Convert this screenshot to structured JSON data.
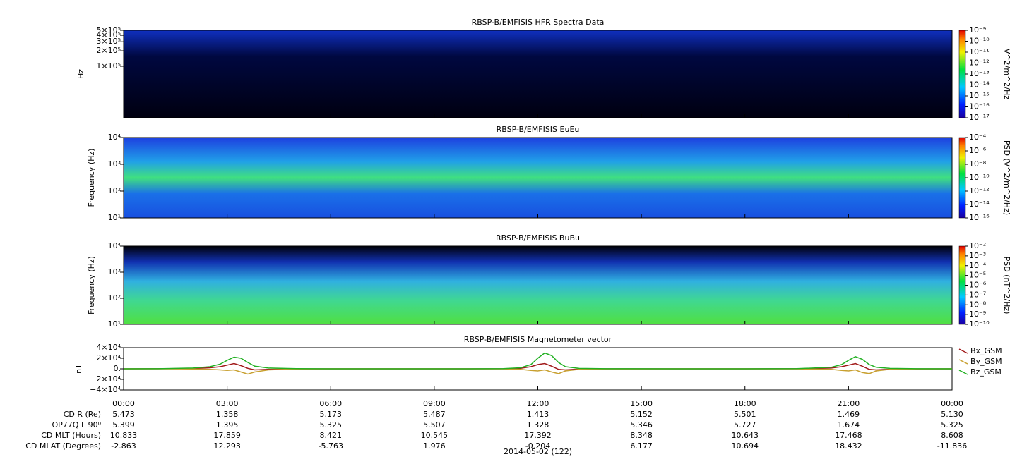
{
  "chart_data": [
    {
      "type": "spectrogram",
      "title": "RBSP-B/EMFISIS  HFR Spectra Data",
      "ylabel": "Hz",
      "log_y": true,
      "ylim": [
        10000,
        500000
      ],
      "yticks": [
        {
          "value": 100000,
          "label": "1×10⁵"
        },
        {
          "value": 200000,
          "label": "2×10⁵"
        },
        {
          "value": 300000,
          "label": "3×10⁵"
        },
        {
          "value": 400000,
          "label": "4×10⁵"
        },
        {
          "value": 500000,
          "label": "5×10⁵"
        }
      ],
      "colorbar": {
        "label": "V^2/m^2/Hz",
        "log": true,
        "zlim": [
          1e-17,
          1e-09
        ],
        "zticks": [
          {
            "value": 1e-17,
            "label": "10⁻¹⁷"
          },
          {
            "value": 1e-16,
            "label": "10⁻¹⁶"
          },
          {
            "value": 1e-15,
            "label": "10⁻¹⁵"
          },
          {
            "value": 1e-14,
            "label": "10⁻¹⁴"
          },
          {
            "value": 1e-13,
            "label": "10⁻¹³"
          },
          {
            "value": 1e-12,
            "label": "10⁻¹²"
          },
          {
            "value": 1e-11,
            "label": "10⁻¹¹"
          },
          {
            "value": 1e-10,
            "label": "10⁻¹⁰"
          },
          {
            "value": 1e-09,
            "label": "10⁻⁹"
          }
        ]
      }
    },
    {
      "type": "spectrogram",
      "title": "RBSP-B/EMFISIS  EuEu",
      "ylabel": "Frequency (Hz)",
      "log_y": true,
      "ylim": [
        10,
        10000
      ],
      "yticks": [
        {
          "value": 10,
          "label": "10¹"
        },
        {
          "value": 100,
          "label": "10²"
        },
        {
          "value": 1000,
          "label": "10³"
        },
        {
          "value": 10000,
          "label": "10⁴"
        }
      ],
      "colorbar": {
        "label": "PSD (V^2/m^2/Hz)",
        "log": true,
        "zlim": [
          1e-16,
          0.0001
        ],
        "zticks": [
          {
            "value": 1e-16,
            "label": "10⁻¹⁶"
          },
          {
            "value": 1e-14,
            "label": "10⁻¹⁴"
          },
          {
            "value": 1e-12,
            "label": "10⁻¹²"
          },
          {
            "value": 1e-10,
            "label": "10⁻¹⁰"
          },
          {
            "value": 1e-08,
            "label": "10⁻⁸"
          },
          {
            "value": 1e-06,
            "label": "10⁻⁶"
          },
          {
            "value": 0.0001,
            "label": "10⁻⁴"
          }
        ]
      }
    },
    {
      "type": "spectrogram",
      "title": "RBSP-B/EMFISIS  BuBu",
      "ylabel": "Frequency (Hz)",
      "log_y": true,
      "ylim": [
        10,
        10000
      ],
      "yticks": [
        {
          "value": 10,
          "label": "10¹"
        },
        {
          "value": 100,
          "label": "10²"
        },
        {
          "value": 1000,
          "label": "10³"
        },
        {
          "value": 10000,
          "label": "10⁴"
        }
      ],
      "colorbar": {
        "label": "PSD (nT^2/Hz)",
        "log": true,
        "zlim": [
          1e-10,
          0.01
        ],
        "zticks": [
          {
            "value": 1e-10,
            "label": "10⁻¹⁰"
          },
          {
            "value": 1e-09,
            "label": "10⁻⁹"
          },
          {
            "value": 1e-08,
            "label": "10⁻⁸"
          },
          {
            "value": 1e-07,
            "label": "10⁻⁷"
          },
          {
            "value": 1e-06,
            "label": "10⁻⁶"
          },
          {
            "value": 1e-05,
            "label": "10⁻⁵"
          },
          {
            "value": 0.0001,
            "label": "10⁻⁴"
          },
          {
            "value": 0.001,
            "label": "10⁻³"
          },
          {
            "value": 0.01,
            "label": "10⁻²"
          }
        ]
      }
    },
    {
      "type": "line",
      "title": "RBSP-B/EMFISIS  Magnetometer vector",
      "ylabel": "nT",
      "legend": "right",
      "ylim": [
        -40000,
        40000
      ],
      "yticks": [
        {
          "value": -40000,
          "label": "−4×10⁴"
        },
        {
          "value": -20000,
          "label": "−2×10⁴"
        },
        {
          "value": 0,
          "label": "0."
        },
        {
          "value": 20000,
          "label": "2×10⁴"
        },
        {
          "value": 40000,
          "label": "4×10⁴"
        }
      ],
      "xlim": [
        0,
        24
      ],
      "xticks": [
        {
          "value": 0,
          "label": "00:00"
        },
        {
          "value": 3,
          "label": "03:00"
        },
        {
          "value": 6,
          "label": "06:00"
        },
        {
          "value": 9,
          "label": "09:00"
        },
        {
          "value": 12,
          "label": "12:00"
        },
        {
          "value": 15,
          "label": "15:00"
        },
        {
          "value": 18,
          "label": "18:00"
        },
        {
          "value": 21,
          "label": "21:00"
        },
        {
          "value": 24,
          "label": "00:00"
        }
      ],
      "x": [
        0,
        1,
        2,
        2.5,
        2.8,
        3.0,
        3.2,
        3.4,
        3.6,
        3.8,
        4.2,
        5,
        6,
        8,
        10,
        11,
        11.5,
        11.8,
        12.0,
        12.2,
        12.4,
        12.6,
        12.8,
        13.2,
        14,
        16,
        18,
        19.5,
        20.5,
        20.8,
        21.0,
        21.2,
        21.4,
        21.6,
        21.8,
        22.2,
        23,
        24
      ],
      "series": [
        {
          "name": "Bx_GSM",
          "color": "#a01818",
          "values": [
            0,
            100,
            700,
            2000,
            4000,
            7000,
            10000,
            6000,
            1000,
            -2000,
            -1000,
            -200,
            0,
            0,
            0,
            200,
            1000,
            4000,
            8000,
            10000,
            5000,
            -1000,
            -2000,
            -500,
            0,
            0,
            0,
            200,
            1500,
            4000,
            7000,
            10000,
            5000,
            -1000,
            -2000,
            -800,
            -100,
            0
          ]
        },
        {
          "name": "By_GSM",
          "color": "#c8a030",
          "values": [
            0,
            0,
            -300,
            -1000,
            -2000,
            -3000,
            -2000,
            -6000,
            -10000,
            -6000,
            -2000,
            -300,
            0,
            0,
            0,
            -200,
            -1000,
            -3000,
            -4000,
            -2000,
            -6000,
            -9000,
            -4000,
            -1000,
            -100,
            0,
            0,
            -200,
            -1000,
            -3000,
            -4000,
            -2000,
            -7000,
            -9000,
            -4000,
            -1000,
            -100,
            0
          ]
        },
        {
          "name": "Bz_GSM",
          "color": "#22b022",
          "values": [
            0,
            200,
            1500,
            4000,
            9000,
            16000,
            22000,
            20000,
            12000,
            5000,
            1500,
            300,
            0,
            0,
            0,
            300,
            2000,
            8000,
            20000,
            30000,
            25000,
            12000,
            4000,
            800,
            100,
            0,
            0,
            300,
            3000,
            8000,
            16000,
            23000,
            18000,
            8000,
            3000,
            800,
            100,
            0
          ]
        }
      ]
    }
  ],
  "ephemeris": {
    "rows": [
      {
        "label": "CD R (Re)",
        "values": [
          "5.473",
          "1.358",
          "5.173",
          "5.487",
          "1.413",
          "5.152",
          "5.501",
          "1.469",
          "5.130"
        ]
      },
      {
        "label": "OP77Q L 90⁰",
        "values": [
          "5.399",
          "1.395",
          "5.325",
          "5.507",
          "1.328",
          "5.346",
          "5.727",
          "1.674",
          "5.325"
        ]
      },
      {
        "label": "CD MLT (Hours)",
        "values": [
          "10.833",
          "17.859",
          "8.421",
          "10.545",
          "17.392",
          "8.348",
          "10.643",
          "17.468",
          "8.608"
        ]
      },
      {
        "label": "CD MLAT (Degrees)",
        "values": [
          "-2.863",
          "12.293",
          "-5.763",
          "1.976",
          "-0.204",
          "6.177",
          "10.694",
          "18.432",
          "-11.836"
        ]
      }
    ],
    "date": "2014-05-02 (122)"
  }
}
